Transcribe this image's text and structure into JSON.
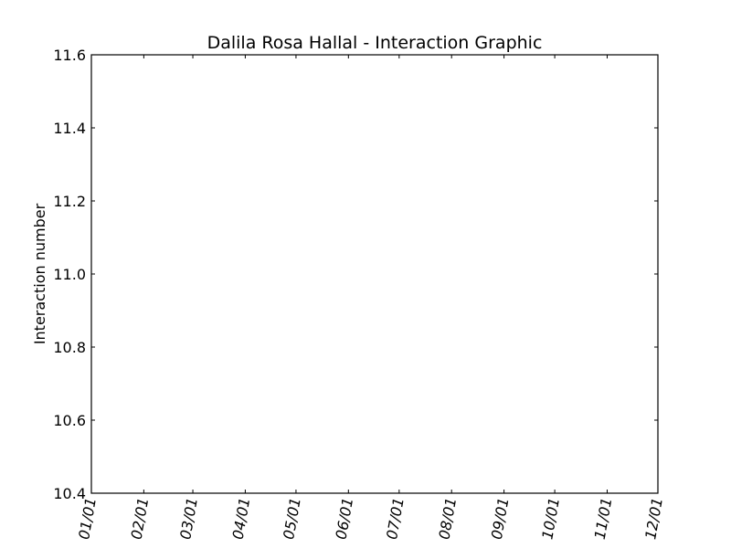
{
  "chart_data": {
    "type": "line",
    "title": "Dalila Rosa Hallal - Interaction Graphic",
    "xlabel": "",
    "ylabel": "Interaction number",
    "x_tick_labels": [
      "01/01",
      "02/01",
      "03/01",
      "04/01",
      "05/01",
      "06/01",
      "07/01",
      "08/01",
      "09/01",
      "10/01",
      "11/01",
      "12/01"
    ],
    "x_tick_dates": [
      "2000-01-01",
      "2000-02-01",
      "2000-03-01",
      "2000-04-01",
      "2000-05-01",
      "2000-06-01",
      "2000-07-01",
      "2000-08-01",
      "2000-09-01",
      "2000-10-01",
      "2000-11-01",
      "2000-12-01"
    ],
    "xlim": [
      "2000-01-01",
      "2000-12-01"
    ],
    "ylim": [
      10.4,
      11.6
    ],
    "y_ticks": [
      10.4,
      10.6,
      10.8,
      11.0,
      11.2,
      11.4,
      11.6
    ],
    "y_tick_labels": [
      "10.4",
      "10.6",
      "10.8",
      "11.0",
      "11.2",
      "11.4",
      "11.6"
    ],
    "grid": false,
    "series": []
  }
}
